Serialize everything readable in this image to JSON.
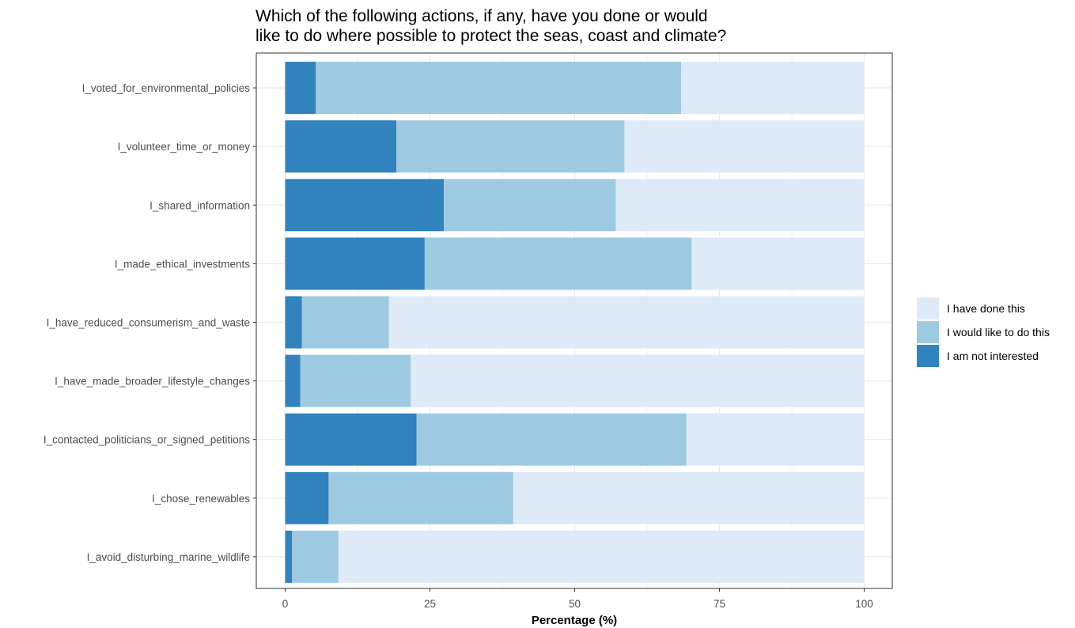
{
  "chart_data": {
    "type": "bar",
    "orientation": "horizontal",
    "stacked": true,
    "title_lines": [
      "Which of the following actions, if any, have you done or would",
      "like to do where possible to protect the seas, coast and climate?"
    ],
    "xlabel": "Percentage (%)",
    "ylabel": "",
    "xlim": [
      0,
      100
    ],
    "xticks": [
      0,
      25,
      50,
      75,
      100
    ],
    "grid": true,
    "legend_position": "right",
    "categories": [
      "I_voted_for_environmental_policies",
      "I_volunteer_time_or_money",
      "I_shared_information",
      "I_made_ethical_investments",
      "I_have_reduced_consumerism_and_waste",
      "I_have_made_broader_lifestyle_changes",
      "I_contacted_politicians_or_signed_petitions",
      "I_chose_renewables",
      "I_avoid_disturbing_marine_wildlife"
    ],
    "series": [
      {
        "name": "I am not interested",
        "color": "#3182bd",
        "values": [
          5.3,
          19.2,
          27.4,
          24.1,
          2.9,
          2.6,
          22.7,
          7.5,
          1.2
        ]
      },
      {
        "name": "I would like to do this",
        "color": "#9ecae1",
        "values": [
          63.1,
          39.4,
          29.7,
          46.1,
          15.0,
          19.1,
          46.6,
          31.9,
          8.0
        ]
      },
      {
        "name": "I have done this",
        "color": "#deebf7",
        "values": [
          31.6,
          41.4,
          42.9,
          29.8,
          82.1,
          78.3,
          30.7,
          60.6,
          90.8
        ]
      }
    ],
    "legend_order": [
      "I have done this",
      "I would like to do this",
      "I am not interested"
    ]
  }
}
